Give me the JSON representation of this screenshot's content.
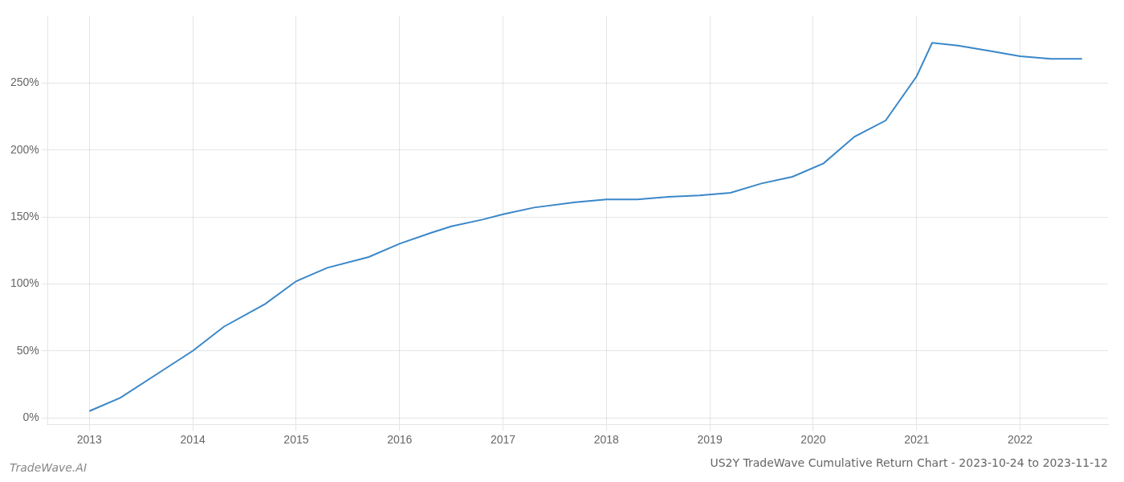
{
  "chart_data": {
    "type": "line",
    "title": "US2Y TradeWave Cumulative Return Chart - 2023-10-24 to 2023-11-12",
    "annotations": [
      "TradeWave.AI"
    ],
    "x": [
      2013.0,
      2013.3,
      2013.7,
      2014.0,
      2014.3,
      2014.7,
      2015.0,
      2015.3,
      2015.7,
      2016.0,
      2016.3,
      2016.5,
      2016.8,
      2017.0,
      2017.3,
      2017.7,
      2018.0,
      2018.3,
      2018.6,
      2018.9,
      2019.2,
      2019.5,
      2019.8,
      2020.1,
      2020.4,
      2020.7,
      2021.0,
      2021.15,
      2021.4,
      2021.7,
      2022.0,
      2022.3,
      2022.6
    ],
    "values": [
      5,
      15,
      35,
      50,
      68,
      85,
      102,
      112,
      120,
      130,
      138,
      143,
      148,
      152,
      157,
      161,
      163,
      163,
      165,
      166,
      168,
      175,
      180,
      190,
      210,
      222,
      255,
      280,
      278,
      274,
      270,
      268,
      268
    ],
    "color": "#3a87c8",
    "xlim": [
      2012.6,
      2022.85
    ],
    "xticks": [
      2013,
      2014,
      2015,
      2016,
      2017,
      2018,
      2019,
      2020,
      2021,
      2022
    ],
    "ylim": [
      -5,
      300
    ],
    "yticks": [
      {
        "value": 0,
        "label": "0%"
      },
      {
        "value": 50,
        "label": "50%"
      },
      {
        "value": 100,
        "label": "100%"
      },
      {
        "value": 150,
        "label": "150%"
      },
      {
        "value": 200,
        "label": "200%"
      },
      {
        "value": 250,
        "label": "250%"
      }
    ],
    "grid": true
  }
}
